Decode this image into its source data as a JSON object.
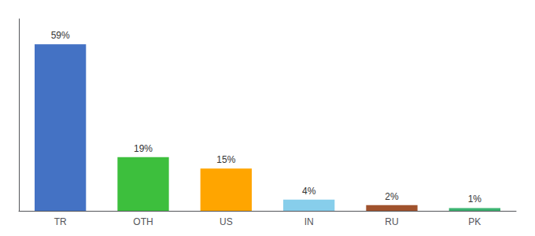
{
  "chart_data": {
    "type": "bar",
    "categories": [
      "TR",
      "OTH",
      "US",
      "IN",
      "RU",
      "PK"
    ],
    "values": [
      59,
      19,
      15,
      4,
      2,
      1
    ],
    "value_labels": [
      "59%",
      "19%",
      "15%",
      "4%",
      "2%",
      "1%"
    ],
    "colors": [
      "#4472C4",
      "#3DBF3D",
      "#FFA500",
      "#87CEEB",
      "#A0522D",
      "#3CB371"
    ],
    "ylim": [
      0,
      68
    ],
    "grid": false,
    "data_labels": true,
    "tick_labels": "x"
  }
}
